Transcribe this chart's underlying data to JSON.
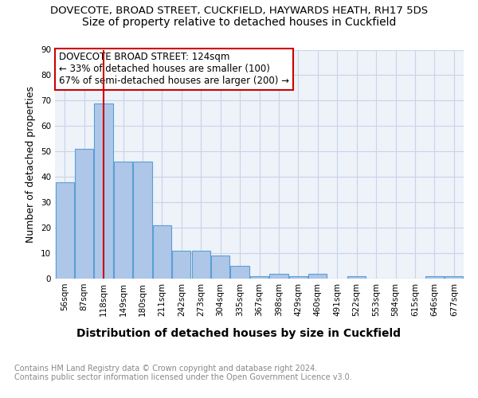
{
  "title": "DOVECOTE, BROAD STREET, CUCKFIELD, HAYWARDS HEATH, RH17 5DS",
  "subtitle": "Size of property relative to detached houses in Cuckfield",
  "xlabel": "Distribution of detached houses by size in Cuckfield",
  "ylabel": "Number of detached properties",
  "categories": [
    "56sqm",
    "87sqm",
    "118sqm",
    "149sqm",
    "180sqm",
    "211sqm",
    "242sqm",
    "273sqm",
    "304sqm",
    "335sqm",
    "367sqm",
    "398sqm",
    "429sqm",
    "460sqm",
    "491sqm",
    "522sqm",
    "553sqm",
    "584sqm",
    "615sqm",
    "646sqm",
    "677sqm"
  ],
  "values": [
    38,
    51,
    69,
    46,
    46,
    21,
    11,
    11,
    9,
    5,
    1,
    2,
    1,
    2,
    0,
    1,
    0,
    0,
    0,
    1,
    1
  ],
  "bar_color": "#aec6e8",
  "bar_edgecolor": "#5a9fd4",
  "bar_linewidth": 0.8,
  "vline_x": 2,
  "vline_color": "#cc0000",
  "annotation_text": "DOVECOTE BROAD STREET: 124sqm\n← 33% of detached houses are smaller (100)\n67% of semi-detached houses are larger (200) →",
  "annotation_box_edgecolor": "#cc0000",
  "annotation_box_facecolor": "#ffffff",
  "ylim": [
    0,
    90
  ],
  "yticks": [
    0,
    10,
    20,
    30,
    40,
    50,
    60,
    70,
    80,
    90
  ],
  "grid_color": "#c8d4e8",
  "background_color": "#eef2f9",
  "footer_text": "Contains HM Land Registry data © Crown copyright and database right 2024.\nContains public sector information licensed under the Open Government Licence v3.0.",
  "title_fontsize": 9.5,
  "subtitle_fontsize": 10,
  "xlabel_fontsize": 10,
  "ylabel_fontsize": 9,
  "tick_fontsize": 7.5,
  "annotation_fontsize": 8.5,
  "footer_fontsize": 7
}
